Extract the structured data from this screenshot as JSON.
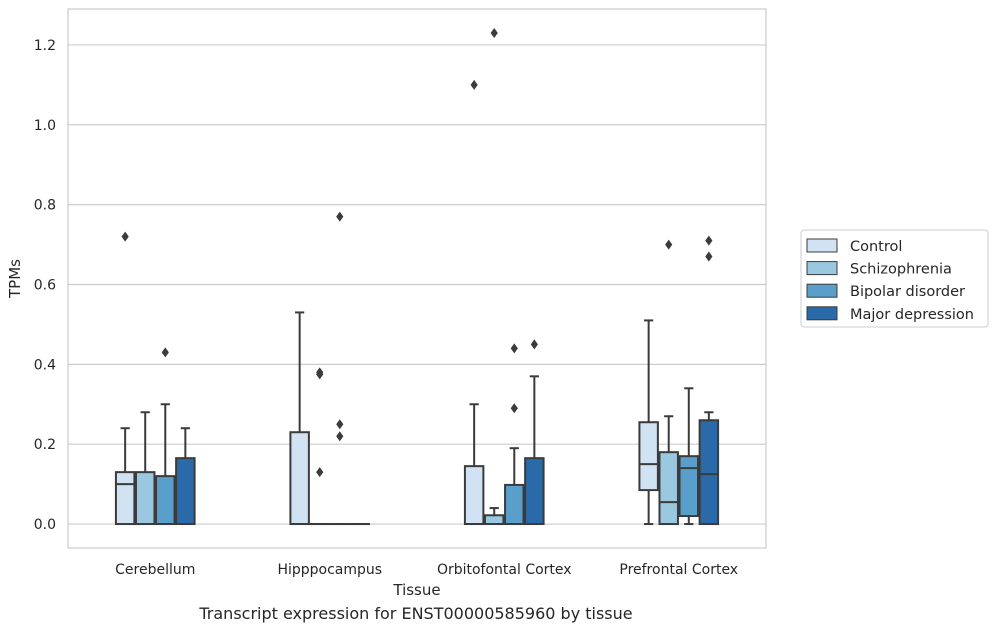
{
  "caption": "Transcript expression for ENST00000585960 by tissue",
  "chart_data": {
    "type": "box",
    "xlabel": "Tissue",
    "ylabel": "TPMs",
    "ylim": [
      -0.06,
      1.29
    ],
    "yticks": [
      0.0,
      0.2,
      0.4,
      0.6,
      0.8,
      1.0,
      1.2
    ],
    "ytick_labels": [
      "0.0",
      "0.2",
      "0.4",
      "0.6",
      "0.8",
      "1.0",
      "1.2"
    ],
    "grid": "horizontal",
    "legend_position": "right",
    "categories": [
      "Cerebellum",
      "Hipppocampus",
      "Orbitofontal Cortex",
      "Prefrontal Cortex"
    ],
    "series": [
      {
        "name": "Control",
        "color": "#d1e2f2",
        "boxes": [
          {
            "whislo": 0.0,
            "q1": 0.0,
            "med": 0.1,
            "q3": 0.13,
            "whishi": 0.24,
            "fliers": [
              0.72
            ]
          },
          {
            "whislo": 0.0,
            "q1": 0.0,
            "med": 0.0,
            "q3": 0.23,
            "whishi": 0.53,
            "fliers": []
          },
          {
            "whislo": 0.0,
            "q1": 0.0,
            "med": 0.0,
            "q3": 0.145,
            "whishi": 0.3,
            "fliers": [
              1.1
            ]
          },
          {
            "whislo": 0.0,
            "q1": 0.085,
            "med": 0.15,
            "q3": 0.255,
            "whishi": 0.51,
            "fliers": []
          }
        ]
      },
      {
        "name": "Schizophrenia",
        "color": "#9ac8e0",
        "boxes": [
          {
            "whislo": 0.0,
            "q1": 0.0,
            "med": 0.0,
            "q3": 0.13,
            "whishi": 0.28,
            "fliers": []
          },
          {
            "whislo": 0.0,
            "q1": 0.0,
            "med": 0.0,
            "q3": 0.0,
            "whishi": 0.0,
            "fliers": [
              0.38,
              0.375,
              0.13
            ]
          },
          {
            "whislo": 0.0,
            "q1": 0.0,
            "med": 0.0,
            "q3": 0.022,
            "whishi": 0.04,
            "fliers": [
              1.23
            ]
          },
          {
            "whislo": 0.0,
            "q1": 0.0,
            "med": 0.055,
            "q3": 0.18,
            "whishi": 0.27,
            "fliers": [
              0.7
            ]
          }
        ]
      },
      {
        "name": "Bipolar disorder",
        "color": "#5a9fcc",
        "boxes": [
          {
            "whislo": 0.0,
            "q1": 0.0,
            "med": 0.0,
            "q3": 0.12,
            "whishi": 0.3,
            "fliers": [
              0.43
            ]
          },
          {
            "whislo": 0.0,
            "q1": 0.0,
            "med": 0.0,
            "q3": 0.0,
            "whishi": 0.0,
            "fliers": [
              0.77,
              0.25,
              0.22
            ]
          },
          {
            "whislo": 0.0,
            "q1": 0.0,
            "med": 0.0,
            "q3": 0.098,
            "whishi": 0.19,
            "fliers": [
              0.44,
              0.29
            ]
          },
          {
            "whislo": 0.0,
            "q1": 0.02,
            "med": 0.14,
            "q3": 0.17,
            "whishi": 0.34,
            "fliers": []
          }
        ]
      },
      {
        "name": "Major depression",
        "color": "#2a6aa8",
        "boxes": [
          {
            "whislo": 0.0,
            "q1": 0.0,
            "med": 0.0,
            "q3": 0.165,
            "whishi": 0.24,
            "fliers": []
          },
          {
            "whislo": 0.0,
            "q1": 0.0,
            "med": 0.0,
            "q3": 0.0,
            "whishi": 0.0,
            "fliers": []
          },
          {
            "whislo": 0.0,
            "q1": 0.0,
            "med": 0.0,
            "q3": 0.165,
            "whishi": 0.37,
            "fliers": [
              0.45
            ]
          },
          {
            "whislo": 0.0,
            "q1": 0.0,
            "med": 0.125,
            "q3": 0.26,
            "whishi": 0.28,
            "fliers": [
              0.71,
              0.67
            ]
          }
        ]
      }
    ]
  }
}
